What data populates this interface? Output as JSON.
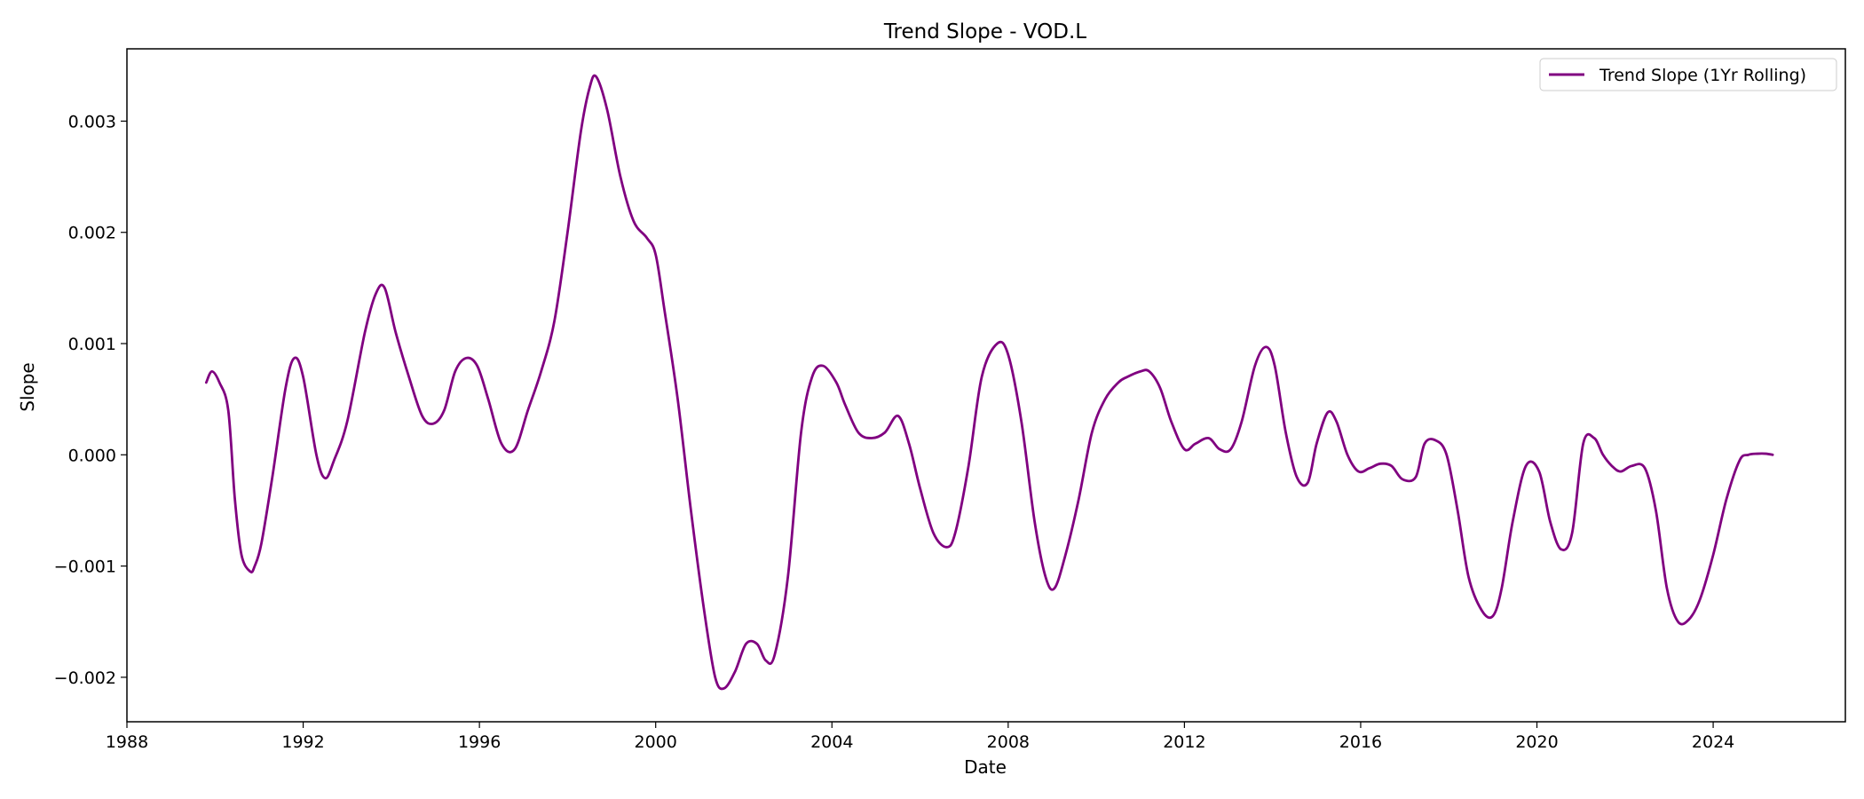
{
  "chart_data": {
    "type": "line",
    "title": "Trend Slope - VOD.L",
    "xlabel": "Date",
    "ylabel": "Slope",
    "xlim": [
      1988.0,
      2027.0
    ],
    "ylim": [
      -0.0024,
      0.00365
    ],
    "x_ticks": [
      1988,
      1992,
      1996,
      2000,
      2004,
      2008,
      2012,
      2016,
      2020,
      2024
    ],
    "x_tick_labels": [
      "1988",
      "1992",
      "1996",
      "2000",
      "2004",
      "2008",
      "2012",
      "2016",
      "2020",
      "2024"
    ],
    "y_ticks": [
      -0.002,
      -0.001,
      0.0,
      0.001,
      0.002,
      0.003
    ],
    "y_tick_labels": [
      "−0.002",
      "−0.001",
      "0.000",
      "0.001",
      "0.002",
      "0.003"
    ],
    "grid": false,
    "legend_position": "top-right",
    "series": [
      {
        "name": "Trend Slope (1Yr Rolling)",
        "color": "#800080",
        "x": [
          1989.8,
          1989.93,
          1990.1,
          1990.3,
          1990.45,
          1990.6,
          1990.8,
          1990.9,
          1991.05,
          1991.3,
          1991.6,
          1991.8,
          1992.0,
          1992.3,
          1992.5,
          1992.7,
          1993.0,
          1993.4,
          1993.65,
          1993.85,
          1994.1,
          1994.4,
          1994.7,
          1994.95,
          1995.2,
          1995.45,
          1995.7,
          1995.95,
          1996.2,
          1996.5,
          1996.8,
          1997.1,
          1997.4,
          1997.7,
          1998.0,
          1998.3,
          1998.5,
          1998.65,
          1998.9,
          1999.2,
          1999.5,
          1999.8,
          2000.0,
          2000.2,
          2000.5,
          2000.8,
          2001.1,
          2001.35,
          2001.55,
          2001.8,
          2002.05,
          2002.3,
          2002.5,
          2002.7,
          2003.0,
          2003.3,
          2003.55,
          2003.8,
          2004.1,
          2004.3,
          2004.6,
          2004.9,
          2005.2,
          2005.5,
          2005.75,
          2006.0,
          2006.3,
          2006.6,
          2006.8,
          2007.1,
          2007.4,
          2007.75,
          2008.0,
          2008.3,
          2008.6,
          2008.85,
          2009.05,
          2009.3,
          2009.6,
          2009.9,
          2010.2,
          2010.5,
          2010.7,
          2011.0,
          2011.2,
          2011.45,
          2011.7,
          2012.0,
          2012.25,
          2012.55,
          2012.8,
          2013.05,
          2013.3,
          2013.6,
          2013.85,
          2014.05,
          2014.3,
          2014.55,
          2014.8,
          2015.0,
          2015.25,
          2015.45,
          2015.7,
          2015.95,
          2016.2,
          2016.45,
          2016.7,
          2016.95,
          2017.25,
          2017.45,
          2017.7,
          2017.95,
          2018.2,
          2018.45,
          2018.75,
          2019.0,
          2019.2,
          2019.45,
          2019.75,
          2020.05,
          2020.3,
          2020.55,
          2020.8,
          2021.05,
          2021.3,
          2021.5,
          2021.7,
          2021.9,
          2022.15,
          2022.45,
          2022.7,
          2022.95,
          2023.2,
          2023.45,
          2023.7,
          2024.0,
          2024.3,
          2024.6,
          2024.8,
          2025.0,
          2025.2,
          2025.35
        ],
        "y": [
          0.00065,
          0.00075,
          0.00065,
          0.0004,
          -0.0004,
          -0.0009,
          -0.00105,
          -0.001,
          -0.0008,
          -0.0002,
          0.0006,
          0.00087,
          0.0007,
          0.0,
          -0.00021,
          -5e-05,
          0.0003,
          0.0011,
          0.00145,
          0.0015,
          0.0011,
          0.0007,
          0.00035,
          0.00028,
          0.0004,
          0.00075,
          0.00087,
          0.0008,
          0.0005,
          0.0001,
          5e-05,
          0.0004,
          0.00075,
          0.0012,
          0.002,
          0.0029,
          0.0033,
          0.0034,
          0.0031,
          0.0025,
          0.0021,
          0.00195,
          0.0018,
          0.0013,
          0.0005,
          -0.0005,
          -0.0014,
          -0.002,
          -0.0021,
          -0.00195,
          -0.0017,
          -0.0017,
          -0.00185,
          -0.0018,
          -0.0011,
          0.0002,
          0.0007,
          0.0008,
          0.00065,
          0.00045,
          0.0002,
          0.00015,
          0.0002,
          0.00035,
          0.0001,
          -0.0003,
          -0.0007,
          -0.00083,
          -0.0007,
          -0.0001,
          0.0007,
          0.001,
          0.0009,
          0.0003,
          -0.0006,
          -0.0011,
          -0.0012,
          -0.0009,
          -0.0004,
          0.0002,
          0.0005,
          0.00065,
          0.0007,
          0.00075,
          0.00075,
          0.0006,
          0.0003,
          5e-05,
          0.0001,
          0.00015,
          5e-05,
          5e-05,
          0.0003,
          0.0008,
          0.00097,
          0.0008,
          0.0002,
          -0.0002,
          -0.00025,
          0.0001,
          0.00038,
          0.0003,
          0.0,
          -0.00015,
          -0.00012,
          -8e-05,
          -0.0001,
          -0.00022,
          -0.0002,
          0.0001,
          0.00013,
          0.0,
          -0.0005,
          -0.0011,
          -0.0014,
          -0.00145,
          -0.0012,
          -0.0006,
          -0.0001,
          -0.00015,
          -0.0006,
          -0.00085,
          -0.0007,
          0.0001,
          0.00015,
          0.0,
          -0.0001,
          -0.00015,
          -0.0001,
          -0.00012,
          -0.0005,
          -0.0012,
          -0.0015,
          -0.00148,
          -0.0013,
          -0.0009,
          -0.0004,
          -5e-05,
          0.0,
          1e-05,
          1e-05,
          0.0
        ]
      }
    ]
  }
}
